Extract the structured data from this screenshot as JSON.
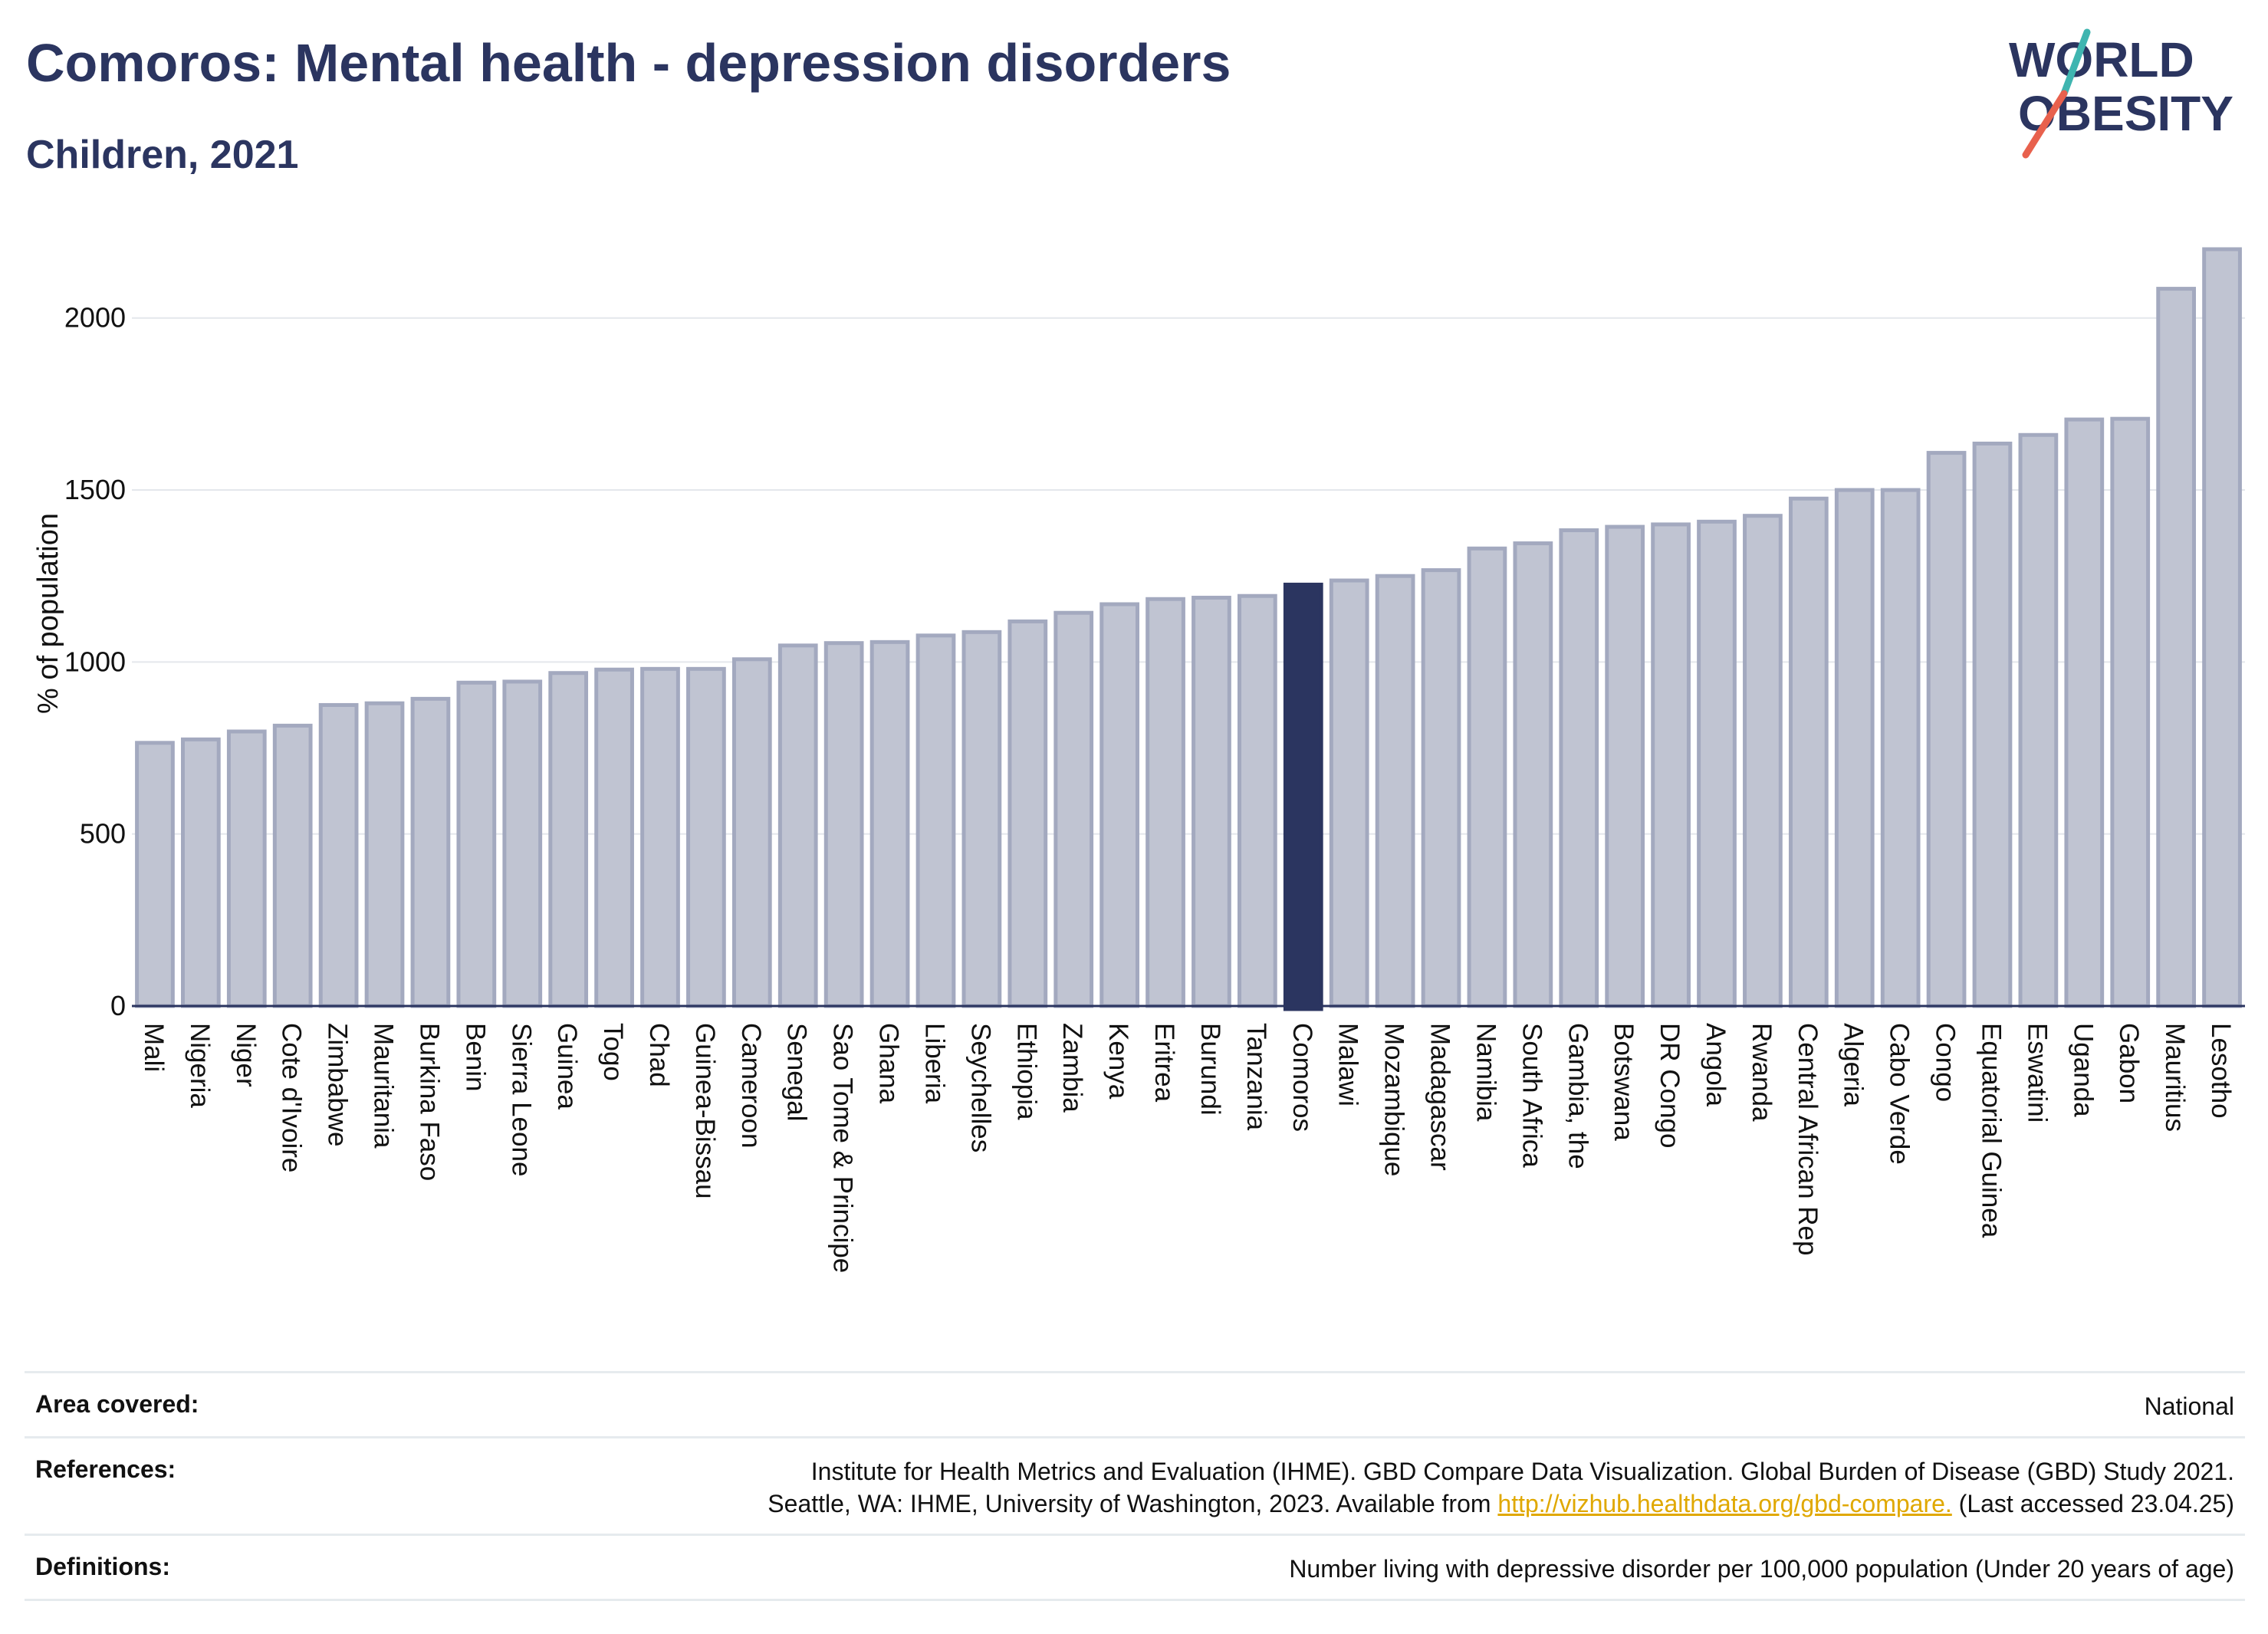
{
  "header": {
    "title": "Comoros: Mental health - depression disorders",
    "subtitle": "Children, 2021"
  },
  "logo": {
    "line1": "WORLD",
    "line2": "OBESITY",
    "icon": "world-obesity-logo"
  },
  "colors": {
    "bar_default": "#c0c4d2",
    "bar_default_stroke": "#a3a9bf",
    "bar_highlight": "#2b3560",
    "title": "#2b3560",
    "logo_accent_teal": "#3fb5b0",
    "logo_accent_red": "#e8614d"
  },
  "chart_data": {
    "type": "bar",
    "title": "Comoros: Mental health - depression disorders",
    "subtitle": "Children, 2021",
    "ylabel": "% of population",
    "xlabel": "",
    "ylim": [
      0,
      2200
    ],
    "yticks": [
      0,
      500,
      1000,
      1500,
      2000
    ],
    "grid": true,
    "legend": "none",
    "highlight": "Comoros",
    "categories": [
      "Mali",
      "Nigeria",
      "Niger",
      "Cote d'Ivoire",
      "Zimbabwe",
      "Mauritania",
      "Burkina Faso",
      "Benin",
      "Sierra Leone",
      "Guinea",
      "Togo",
      "Chad",
      "Guinea-Bissau",
      "Cameroon",
      "Senegal",
      "Sao Tome & Principe",
      "Ghana",
      "Liberia",
      "Seychelles",
      "Ethiopia",
      "Zambia",
      "Kenya",
      "Eritrea",
      "Burundi",
      "Tanzania",
      "Comoros",
      "Malawi",
      "Mozambique",
      "Madagascar",
      "Namibia",
      "South Africa",
      "Gambia, the",
      "Botswana",
      "DR Congo",
      "Angola",
      "Rwanda",
      "Central African Rep",
      "Algeria",
      "Cabo Verde",
      "Congo",
      "Equatorial Guinea",
      "Eswatini",
      "Uganda",
      "Gabon",
      "Mauritius",
      "Lesotho"
    ],
    "values": [
      765,
      775,
      798,
      815,
      875,
      880,
      893,
      940,
      943,
      968,
      978,
      980,
      980,
      1008,
      1048,
      1055,
      1058,
      1077,
      1087,
      1118,
      1143,
      1168,
      1183,
      1187,
      1192,
      1225,
      1237,
      1250,
      1267,
      1330,
      1345,
      1383,
      1393,
      1400,
      1408,
      1425,
      1475,
      1500,
      1500,
      1608,
      1635,
      1660,
      1705,
      1707,
      2085,
      2200
    ]
  },
  "info": {
    "area_label": "Area covered:",
    "area_value": "National",
    "references_label": "References:",
    "references_line1": "Institute for Health Metrics and Evaluation (IHME). GBD Compare Data Visualization. Global Burden of Disease (GBD) Study 2021.",
    "references_line2_prefix": "Seattle, WA: IHME, University of Washington, 2023. Available from ",
    "references_link": "http://vizhub.healthdata.org/gbd-compare.",
    "references_line2_suffix": " (Last accessed 23.04.25)",
    "definitions_label": "Definitions:",
    "definitions_value": "Number living with depressive disorder per 100,000 population (Under 20 years of age)"
  }
}
